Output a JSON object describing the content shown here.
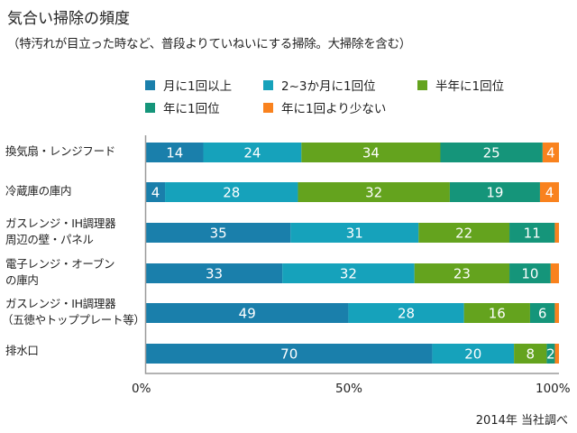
{
  "title": "気合い掃除の頻度",
  "subtitle": "（特汚れが目立った時など、普段よりていねいにする掃除。大掃除を含む）",
  "note": "2014年 当社調べ",
  "chart_data": {
    "type": "bar",
    "orientation": "horizontal",
    "stacked": "percent",
    "title": "気合い掃除の頻度",
    "xlabel": "",
    "ylabel": "",
    "xlim": [
      0,
      100
    ],
    "x_ticks": [
      "0%",
      "50%",
      "100%"
    ],
    "legend_position": "top",
    "categories": [
      [
        "換気扇・レンジフード"
      ],
      [
        "冷蔵庫の庫内"
      ],
      [
        "ガスレンジ・IH調理器",
        "周辺の壁・パネル"
      ],
      [
        "電子レンジ・オーブン",
        "の庫内"
      ],
      [
        "ガスレンジ・IH調理器",
        "（五徳やトッププレート等）"
      ],
      [
        "排水口"
      ]
    ],
    "series": [
      {
        "name": "月に1回以上",
        "color": "#1a7fab",
        "values": [
          14,
          4,
          35,
          33,
          49,
          70
        ]
      },
      {
        "name": "2~3か月に1回位",
        "color": "#16a2bb",
        "values": [
          24,
          28,
          31,
          32,
          28,
          20
        ]
      },
      {
        "name": "半年に1回位",
        "color": "#64a31e",
        "values": [
          34,
          32,
          22,
          23,
          16,
          8
        ]
      },
      {
        "name": "年に1回位",
        "color": "#15957a",
        "values": [
          25,
          19,
          11,
          10,
          6,
          2
        ]
      },
      {
        "name": "年に1回より少ない",
        "color": "#f9821e",
        "values": [
          4,
          4,
          1,
          2,
          1,
          1
        ]
      }
    ],
    "labels": [
      [
        "14",
        "24",
        "34",
        "25",
        "4"
      ],
      [
        "4",
        "28",
        "32",
        "19",
        "4"
      ],
      [
        "35",
        "31",
        "22",
        "11",
        ""
      ],
      [
        "33",
        "32",
        "23",
        "10",
        ""
      ],
      [
        "49",
        "28",
        "16",
        "6",
        ""
      ],
      [
        "70",
        "20",
        "8",
        "2",
        ""
      ]
    ]
  }
}
